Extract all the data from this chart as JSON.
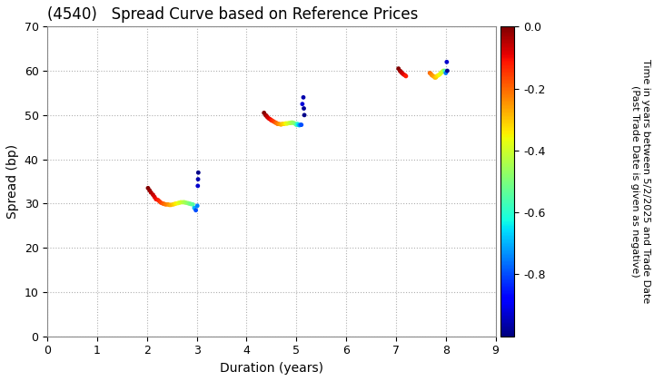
{
  "title": "(4540)   Spread Curve based on Reference Prices",
  "xlabel": "Duration (years)",
  "ylabel": "Spread (bp)",
  "colorbar_label_line1": "Time in years between 5/2/2025 and Trade Date",
  "colorbar_label_line2": "(Past Trade Date is given as negative)",
  "xlim": [
    0,
    9
  ],
  "ylim": [
    0,
    70
  ],
  "xticks": [
    0,
    1,
    2,
    3,
    4,
    5,
    6,
    7,
    8,
    9
  ],
  "yticks": [
    0,
    10,
    20,
    30,
    40,
    50,
    60,
    70
  ],
  "cmap": "jet",
  "vmin": -1.0,
  "vmax": 0.0,
  "cluster1": {
    "duration": [
      2.02,
      2.05,
      2.08,
      2.12,
      2.15,
      2.18,
      2.22,
      2.25,
      2.28,
      2.32,
      2.35,
      2.38,
      2.42,
      2.45,
      2.48,
      2.52,
      2.55,
      2.58,
      2.62,
      2.65,
      2.68,
      2.72,
      2.75,
      2.78,
      2.82,
      2.85,
      2.88,
      2.92,
      2.95,
      2.98,
      3.01,
      3.02,
      3.025,
      3.03
    ],
    "spread": [
      33.5,
      33.0,
      32.5,
      32.0,
      31.5,
      31.0,
      30.8,
      30.5,
      30.2,
      30.0,
      29.9,
      29.8,
      29.8,
      29.7,
      29.7,
      29.8,
      29.9,
      30.0,
      30.1,
      30.2,
      30.3,
      30.3,
      30.3,
      30.2,
      30.1,
      30.0,
      29.9,
      29.8,
      29.0,
      28.5,
      29.5,
      34.0,
      35.5,
      37.0
    ],
    "time": [
      0.0,
      -0.02,
      -0.04,
      -0.06,
      -0.08,
      -0.1,
      -0.12,
      -0.14,
      -0.16,
      -0.18,
      -0.2,
      -0.22,
      -0.24,
      -0.26,
      -0.28,
      -0.3,
      -0.32,
      -0.34,
      -0.36,
      -0.38,
      -0.4,
      -0.42,
      -0.44,
      -0.46,
      -0.48,
      -0.5,
      -0.52,
      -0.54,
      -0.7,
      -0.8,
      -0.75,
      -0.93,
      -0.96,
      -0.99
    ]
  },
  "cluster2": {
    "duration": [
      4.35,
      4.38,
      4.4,
      4.42,
      4.45,
      4.48,
      4.5,
      4.52,
      4.55,
      4.58,
      4.6,
      4.62,
      4.65,
      4.68,
      4.7,
      4.72,
      4.75,
      4.78,
      4.8,
      4.82,
      4.85,
      4.88,
      4.9,
      4.92,
      4.95,
      4.98,
      5.0,
      5.02,
      5.04,
      5.06,
      5.08,
      5.1,
      5.12,
      5.14,
      5.15,
      5.16
    ],
    "spread": [
      50.5,
      50.0,
      49.8,
      49.5,
      49.2,
      49.0,
      48.8,
      48.7,
      48.5,
      48.3,
      48.2,
      48.0,
      48.0,
      47.9,
      47.9,
      48.0,
      48.0,
      48.1,
      48.1,
      48.1,
      48.2,
      48.2,
      48.3,
      48.3,
      48.2,
      48.0,
      47.8,
      48.0,
      47.8,
      47.7,
      47.8,
      47.8,
      52.5,
      54.0,
      51.5,
      50.0
    ],
    "time": [
      0.0,
      -0.02,
      -0.04,
      -0.06,
      -0.08,
      -0.1,
      -0.12,
      -0.14,
      -0.16,
      -0.18,
      -0.2,
      -0.22,
      -0.24,
      -0.26,
      -0.28,
      -0.3,
      -0.32,
      -0.34,
      -0.36,
      -0.38,
      -0.4,
      -0.42,
      -0.44,
      -0.46,
      -0.48,
      -0.5,
      -0.55,
      -0.6,
      -0.65,
      -0.7,
      -0.75,
      -0.8,
      -0.92,
      -0.96,
      -0.98,
      -0.99
    ]
  },
  "cluster3": {
    "duration": [
      7.05,
      7.08,
      7.1,
      7.12,
      7.15,
      7.18,
      7.2,
      7.68,
      7.7,
      7.72,
      7.75,
      7.78,
      7.8,
      7.82,
      7.85,
      7.88,
      7.9,
      7.92,
      7.95,
      7.98,
      8.0,
      8.02,
      8.03
    ],
    "spread": [
      60.5,
      60.0,
      59.8,
      59.5,
      59.2,
      59.0,
      58.8,
      59.5,
      59.3,
      59.0,
      58.8,
      58.5,
      58.5,
      58.8,
      59.0,
      59.2,
      59.5,
      59.7,
      60.0,
      60.0,
      59.5,
      62.0,
      60.0
    ],
    "time": [
      0.0,
      -0.02,
      -0.04,
      -0.06,
      -0.08,
      -0.1,
      -0.12,
      -0.2,
      -0.22,
      -0.24,
      -0.26,
      -0.28,
      -0.3,
      -0.32,
      -0.34,
      -0.36,
      -0.38,
      -0.4,
      -0.42,
      -0.55,
      -0.75,
      -0.93,
      -0.98
    ]
  },
  "background_color": "#ffffff",
  "grid_color": "#b0b0b0",
  "title_fontsize": 12,
  "axis_fontsize": 10,
  "tick_fontsize": 9,
  "cbar_tick_fontsize": 9,
  "cbar_label_fontsize": 8
}
